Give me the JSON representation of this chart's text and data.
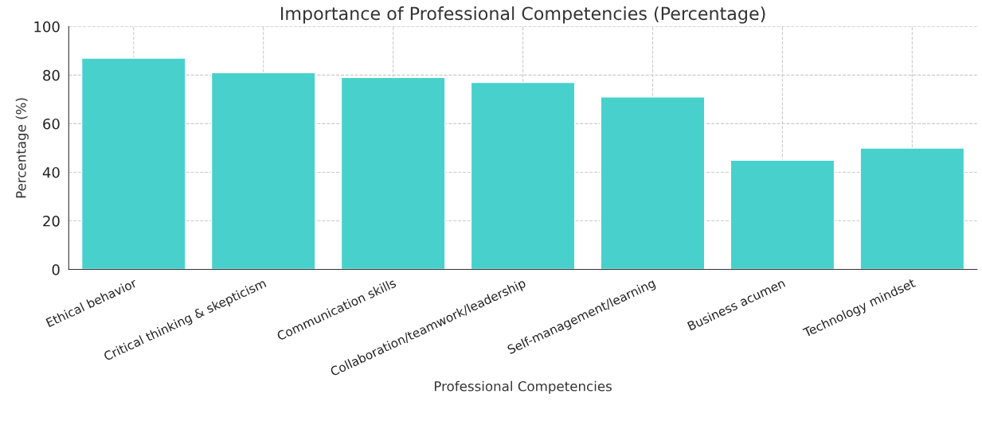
{
  "chart_data": {
    "type": "bar",
    "title": "Importance of Professional Competencies (Percentage)",
    "xlabel": "Professional Competencies",
    "ylabel": "Percentage (%)",
    "categories": [
      "Ethical behavior",
      "Critical thinking & skepticism",
      "Communication skills",
      "Collaboration/teamwork/leadership",
      "Self-management/learning",
      "Business acumen",
      "Technology mindset"
    ],
    "values": [
      87,
      81,
      79,
      77,
      71,
      45,
      50
    ],
    "color": "#48d1cc",
    "ylim": [
      0,
      100
    ],
    "yticks": [
      0,
      20,
      40,
      60,
      80,
      100
    ],
    "grid": true
  }
}
